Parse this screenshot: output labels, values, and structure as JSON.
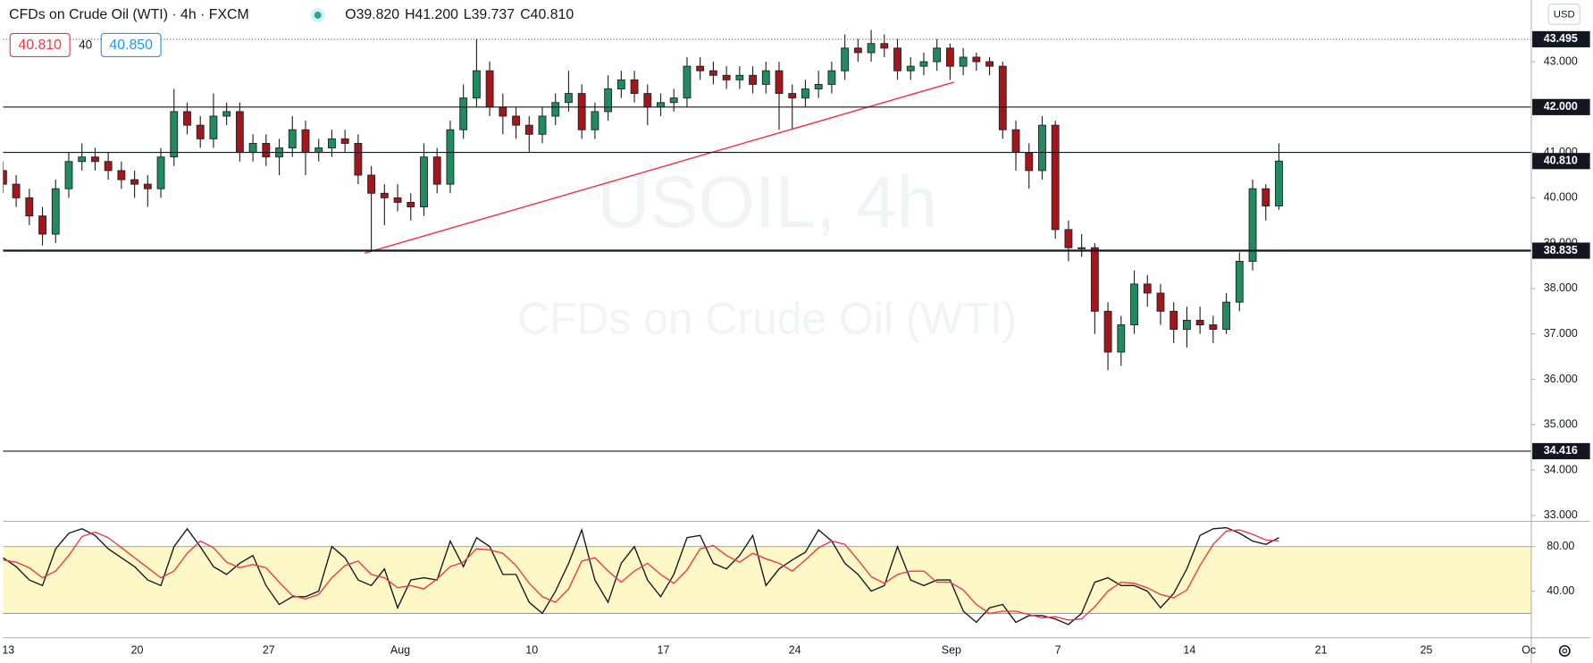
{
  "header": {
    "title": "CFDs on Crude Oil (WTI) · 4h · FXCM",
    "ohlc": [
      "O39.820",
      "H41.200",
      "L39.737",
      "C40.810"
    ],
    "bid": "40.810",
    "spread": "40",
    "ask": "40.850",
    "currency": "USD"
  },
  "watermark": {
    "symbol": "USOIL, 4h",
    "name": "CFDs on Crude Oil (WTI)"
  },
  "chart_data": [
    {
      "type": "candlestick",
      "x": [
        0,
        1,
        2,
        3,
        4,
        5,
        6,
        7,
        8,
        9,
        10,
        11,
        12,
        13,
        14,
        15,
        16,
        17,
        18,
        19,
        20,
        21,
        22,
        23,
        24,
        25,
        26,
        27,
        28,
        29,
        30,
        31,
        32,
        33,
        34,
        35,
        36,
        37,
        38,
        39,
        40,
        41,
        42,
        43,
        44,
        45,
        46,
        47,
        48,
        49,
        50,
        51,
        52,
        53,
        54,
        55,
        56,
        57,
        58,
        59,
        60,
        61,
        62,
        63,
        64,
        65,
        66,
        67,
        68,
        69,
        70,
        71,
        72,
        73,
        74,
        75,
        76,
        77,
        78,
        79,
        80,
        81,
        82,
        83,
        84,
        85,
        86,
        87,
        88,
        89,
        90,
        91,
        92,
        93,
        94,
        95,
        96,
        97
      ],
      "open": [
        40.6,
        40.3,
        40.0,
        39.6,
        39.2,
        40.2,
        40.8,
        40.9,
        40.8,
        40.6,
        40.4,
        40.3,
        40.2,
        40.9,
        41.9,
        41.6,
        41.3,
        41.8,
        41.9,
        41.0,
        41.2,
        40.9,
        41.1,
        41.5,
        41.0,
        41.1,
        41.3,
        41.2,
        40.5,
        40.1,
        40.0,
        39.9,
        39.8,
        40.9,
        40.3,
        41.5,
        42.2,
        42.8,
        42.0,
        41.8,
        41.6,
        41.4,
        41.8,
        42.1,
        42.3,
        41.5,
        41.9,
        42.4,
        42.6,
        42.3,
        42.0,
        42.1,
        42.2,
        42.9,
        42.8,
        42.7,
        42.6,
        42.7,
        42.5,
        42.8,
        42.3,
        42.2,
        42.4,
        42.5,
        42.8,
        43.3,
        43.2,
        43.4,
        43.3,
        42.8,
        42.9,
        43.0,
        43.3,
        42.9,
        43.1,
        43.0,
        42.9,
        41.5,
        41.0,
        40.6,
        41.6,
        39.3,
        38.9,
        38.9,
        37.5,
        36.6,
        37.2,
        38.1,
        37.9,
        37.5,
        37.1,
        37.3,
        37.2,
        37.1,
        37.7,
        38.6,
        40.2,
        39.82
      ],
      "high": [
        40.8,
        40.5,
        40.2,
        39.8,
        40.4,
        41.0,
        41.2,
        41.1,
        41.0,
        40.8,
        40.6,
        40.5,
        41.1,
        42.4,
        42.1,
        41.8,
        42.3,
        42.1,
        42.1,
        41.4,
        41.4,
        41.3,
        41.8,
        41.7,
        41.3,
        41.5,
        41.5,
        41.4,
        40.7,
        40.3,
        40.3,
        40.1,
        41.2,
        41.1,
        41.7,
        42.5,
        43.5,
        43.0,
        42.3,
        42.0,
        41.8,
        42.0,
        42.3,
        42.8,
        42.5,
        42.1,
        42.7,
        42.8,
        42.8,
        42.5,
        42.3,
        42.4,
        43.1,
        43.1,
        43.0,
        42.9,
        42.9,
        42.9,
        43.0,
        43.0,
        42.5,
        42.6,
        42.8,
        43.0,
        43.6,
        43.5,
        43.7,
        43.6,
        43.5,
        43.1,
        43.2,
        43.5,
        43.4,
        43.3,
        43.2,
        43.1,
        43.0,
        41.7,
        41.2,
        41.8,
        41.7,
        39.5,
        39.2,
        39.0,
        37.7,
        37.4,
        38.4,
        38.3,
        38.1,
        37.7,
        37.6,
        37.6,
        37.4,
        37.9,
        38.8,
        40.4,
        40.3,
        41.2
      ],
      "low": [
        40.1,
        39.8,
        39.4,
        38.95,
        39.0,
        40.0,
        40.6,
        40.6,
        40.4,
        40.2,
        40.0,
        39.8,
        40.0,
        40.7,
        41.4,
        41.1,
        41.1,
        41.6,
        40.8,
        40.8,
        40.7,
        40.5,
        40.9,
        40.5,
        40.8,
        40.9,
        41.0,
        40.3,
        38.85,
        39.4,
        39.7,
        39.5,
        39.6,
        40.1,
        40.1,
        41.3,
        42.0,
        41.8,
        41.4,
        41.3,
        41.0,
        41.2,
        41.6,
        41.9,
        41.3,
        41.3,
        41.7,
        42.2,
        42.1,
        41.6,
        41.8,
        41.9,
        42.0,
        42.6,
        42.5,
        42.4,
        42.4,
        42.3,
        42.3,
        41.5,
        41.5,
        42.0,
        42.2,
        42.3,
        42.6,
        43.0,
        43.0,
        43.1,
        42.6,
        42.6,
        42.7,
        42.8,
        42.6,
        42.7,
        42.8,
        42.7,
        41.3,
        40.6,
        40.2,
        40.4,
        39.1,
        38.6,
        38.7,
        37.0,
        36.2,
        36.3,
        37.0,
        37.6,
        37.2,
        36.8,
        36.7,
        37.0,
        36.8,
        37.0,
        37.5,
        38.4,
        39.5,
        39.737
      ],
      "close": [
        40.3,
        40.0,
        39.6,
        39.2,
        40.2,
        40.8,
        40.9,
        40.8,
        40.6,
        40.4,
        40.3,
        40.2,
        40.9,
        41.9,
        41.6,
        41.3,
        41.8,
        41.9,
        41.0,
        41.2,
        40.9,
        41.1,
        41.5,
        41.0,
        41.1,
        41.3,
        41.2,
        40.5,
        40.1,
        40.0,
        39.9,
        39.8,
        40.9,
        40.3,
        41.5,
        42.2,
        42.8,
        42.0,
        41.8,
        41.6,
        41.4,
        41.8,
        42.1,
        42.3,
        41.5,
        41.9,
        42.4,
        42.6,
        42.3,
        42.0,
        42.1,
        42.2,
        42.9,
        42.8,
        42.7,
        42.6,
        42.7,
        42.5,
        42.8,
        42.3,
        42.2,
        42.4,
        42.5,
        42.8,
        43.3,
        43.2,
        43.4,
        43.3,
        42.8,
        42.9,
        43.0,
        43.3,
        42.9,
        43.1,
        43.0,
        42.9,
        41.5,
        41.0,
        40.6,
        41.6,
        39.3,
        38.9,
        38.9,
        37.5,
        36.6,
        37.2,
        38.1,
        37.9,
        37.5,
        37.1,
        37.3,
        37.2,
        37.1,
        37.7,
        38.6,
        40.2,
        39.82,
        40.81
      ],
      "up_color": "#1e8c5e",
      "down_color": "#a3161b",
      "ylim": [
        32.87,
        44.36
      ],
      "yticks": [
        {
          "value": 33,
          "label": "33.000"
        },
        {
          "value": 34,
          "label": "34.000"
        },
        {
          "value": 35,
          "label": "35.000"
        },
        {
          "value": 36,
          "label": "36.000"
        },
        {
          "value": 37,
          "label": "37.000"
        },
        {
          "value": 38,
          "label": "38.000"
        },
        {
          "value": 39,
          "label": "39.000"
        },
        {
          "value": 40,
          "label": "40.000"
        },
        {
          "value": 41,
          "label": "41.000"
        },
        {
          "value": 42,
          "label": "42.000"
        },
        {
          "value": 43,
          "label": "43.000"
        }
      ],
      "xlim": [
        0,
        116.8
      ],
      "xticks": [
        {
          "value": 0.4,
          "label": "13"
        },
        {
          "value": 10.2,
          "label": "20"
        },
        {
          "value": 20.2,
          "label": "27"
        },
        {
          "value": 30.2,
          "label": "Aug"
        },
        {
          "value": 40.2,
          "label": "10"
        },
        {
          "value": 50.2,
          "label": "17"
        },
        {
          "value": 60.2,
          "label": "24"
        },
        {
          "value": 72.1,
          "label": "Sep"
        },
        {
          "value": 80.2,
          "label": "7"
        },
        {
          "value": 90.2,
          "label": "14"
        },
        {
          "value": 100.2,
          "label": "21"
        },
        {
          "value": 108.2,
          "label": "25"
        },
        {
          "value": 116,
          "label": "Oc"
        }
      ],
      "levels": [
        {
          "value": 43.495,
          "label": "43.495",
          "style": "dotted"
        },
        {
          "value": 42,
          "label": "42.000"
        },
        {
          "value": 41
        },
        {
          "value": 38.835,
          "label": "38.835",
          "width": 2
        },
        {
          "value": 34.416,
          "label": "34.416"
        }
      ],
      "last_price": {
        "value": 40.81,
        "label": "40.810"
      },
      "trendline": {
        "x": [
          27.5,
          72.3
        ],
        "y": [
          38.78,
          42.55
        ],
        "color": "#f23645"
      }
    },
    {
      "type": "line",
      "x": [
        0,
        1,
        2,
        3,
        4,
        5,
        6,
        7,
        8,
        9,
        10,
        11,
        12,
        13,
        14,
        15,
        16,
        17,
        18,
        19,
        20,
        21,
        22,
        23,
        24,
        25,
        26,
        27,
        28,
        29,
        30,
        31,
        32,
        33,
        34,
        35,
        36,
        37,
        38,
        39,
        40,
        41,
        42,
        43,
        44,
        45,
        46,
        47,
        48,
        49,
        50,
        51,
        52,
        53,
        54,
        55,
        56,
        57,
        58,
        59,
        60,
        61,
        62,
        63,
        64,
        65,
        66,
        67,
        68,
        69,
        70,
        71,
        72,
        73,
        74,
        75,
        76,
        77,
        78,
        79,
        80,
        81,
        82,
        83,
        84,
        85,
        86,
        87,
        88,
        89,
        90,
        91,
        92,
        93,
        94,
        95,
        96,
        97
      ],
      "series": [
        {
          "color": "#131722",
          "values": [
            70,
            62,
            50,
            45,
            78,
            92,
            96,
            90,
            78,
            70,
            62,
            50,
            45,
            80,
            96,
            80,
            62,
            55,
            65,
            72,
            45,
            28,
            35,
            35,
            40,
            80,
            70,
            50,
            45,
            60,
            25,
            50,
            52,
            50,
            85,
            62,
            88,
            80,
            55,
            55,
            30,
            20,
            40,
            65,
            95,
            50,
            30,
            65,
            80,
            50,
            35,
            55,
            88,
            90,
            65,
            60,
            72,
            90,
            45,
            60,
            68,
            75,
            95,
            85,
            65,
            55,
            40,
            45,
            80,
            50,
            45,
            50,
            50,
            22,
            12,
            25,
            28,
            12,
            18,
            18,
            15,
            10,
            20,
            48,
            52,
            45,
            45,
            40,
            25,
            38,
            60,
            90,
            96,
            97,
            92,
            85,
            82,
            88
          ]
        },
        {
          "color": "#f23645",
          "values": [
            68,
            66,
            61,
            52,
            58,
            72,
            89,
            93,
            88,
            79,
            70,
            61,
            52,
            58,
            74,
            85,
            79,
            66,
            61,
            64,
            61,
            48,
            36,
            33,
            37,
            52,
            63,
            67,
            55,
            52,
            43,
            45,
            42,
            51,
            62,
            66,
            78,
            77,
            74,
            63,
            47,
            35,
            30,
            42,
            67,
            70,
            58,
            48,
            58,
            65,
            55,
            47,
            59,
            78,
            81,
            72,
            66,
            74,
            69,
            65,
            58,
            68,
            79,
            85,
            82,
            68,
            53,
            47,
            55,
            58,
            58,
            48,
            48,
            41,
            28,
            20,
            22,
            22,
            19,
            16,
            17,
            14,
            15,
            26,
            40,
            48,
            47,
            43,
            37,
            34,
            41,
            63,
            82,
            94,
            95,
            91,
            86,
            85
          ]
        }
      ],
      "band": [
        20,
        80
      ],
      "band_color": "#fdf8c6",
      "ylim": [
        -1.8,
        102.7
      ],
      "yticks": [
        {
          "value": 80,
          "label": "80.00"
        },
        {
          "value": 40,
          "label": "40.00"
        }
      ]
    }
  ]
}
